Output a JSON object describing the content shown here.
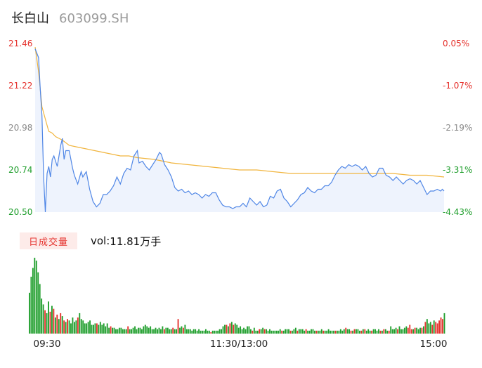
{
  "header": {
    "name": "长白山",
    "code": "603099.SH"
  },
  "volume_panel": {
    "badge": "日成交量",
    "vol_prefix": "vol: ",
    "vol_value": "11.81万手"
  },
  "colors": {
    "price": "#4f86e6",
    "avg": "#f1b53e",
    "up": "#e5322d",
    "down": "#1f9e2c",
    "neutral": "#888888",
    "fill": "#eef3fd"
  },
  "chart_data": [
    {
      "type": "line",
      "x_ticks": [
        "09:30",
        "11:30/13:00",
        "15:00"
      ],
      "y_ticks": [
        "21.46",
        "21.22",
        "20.98",
        "20.74",
        "20.50"
      ],
      "y_ticks_right": [
        "0.05%",
        "-1.07%",
        "-2.19%",
        "-3.31%",
        "-4.43%"
      ],
      "ylim": [
        20.5,
        21.46
      ],
      "n_points": 241,
      "series": [
        {
          "role": "price",
          "points": [
            [
              0,
              21.43
            ],
            [
              2,
              21.38
            ],
            [
              3,
              21.2
            ],
            [
              4,
              21.05
            ],
            [
              5,
              20.7
            ],
            [
              6,
              20.5
            ],
            [
              7,
              20.72
            ],
            [
              8,
              20.76
            ],
            [
              9,
              20.7
            ],
            [
              10,
              20.8
            ],
            [
              11,
              20.82
            ],
            [
              13,
              20.76
            ],
            [
              15,
              20.88
            ],
            [
              16,
              20.92
            ],
            [
              17,
              20.8
            ],
            [
              18,
              20.85
            ],
            [
              20,
              20.85
            ],
            [
              22,
              20.75
            ],
            [
              23,
              20.71
            ],
            [
              25,
              20.66
            ],
            [
              27,
              20.73
            ],
            [
              28,
              20.7
            ],
            [
              30,
              20.73
            ],
            [
              32,
              20.63
            ],
            [
              34,
              20.56
            ],
            [
              36,
              20.53
            ],
            [
              38,
              20.55
            ],
            [
              40,
              20.6
            ],
            [
              42,
              20.6
            ],
            [
              44,
              20.62
            ],
            [
              46,
              20.65
            ],
            [
              48,
              20.7
            ],
            [
              50,
              20.66
            ],
            [
              52,
              20.72
            ],
            [
              54,
              20.75
            ],
            [
              56,
              20.74
            ],
            [
              58,
              20.82
            ],
            [
              60,
              20.85
            ],
            [
              61,
              20.78
            ],
            [
              63,
              20.79
            ],
            [
              65,
              20.76
            ],
            [
              67,
              20.74
            ],
            [
              69,
              20.77
            ],
            [
              71,
              20.8
            ],
            [
              73,
              20.84
            ],
            [
              74,
              20.83
            ],
            [
              76,
              20.77
            ],
            [
              78,
              20.74
            ],
            [
              80,
              20.7
            ],
            [
              82,
              20.64
            ],
            [
              84,
              20.62
            ],
            [
              86,
              20.63
            ],
            [
              88,
              20.61
            ],
            [
              90,
              20.62
            ],
            [
              92,
              20.6
            ],
            [
              94,
              20.61
            ],
            [
              96,
              20.6
            ],
            [
              98,
              20.58
            ],
            [
              100,
              20.6
            ],
            [
              102,
              20.59
            ],
            [
              104,
              20.61
            ],
            [
              106,
              20.61
            ],
            [
              108,
              20.57
            ],
            [
              110,
              20.54
            ],
            [
              112,
              20.53
            ],
            [
              114,
              20.53
            ],
            [
              116,
              20.52
            ],
            [
              118,
              20.53
            ],
            [
              120,
              20.53
            ],
            [
              122,
              20.55
            ],
            [
              124,
              20.53
            ],
            [
              126,
              20.58
            ],
            [
              128,
              20.56
            ],
            [
              130,
              20.54
            ],
            [
              132,
              20.56
            ],
            [
              134,
              20.53
            ],
            [
              136,
              20.54
            ],
            [
              138,
              20.59
            ],
            [
              140,
              20.58
            ],
            [
              142,
              20.62
            ],
            [
              144,
              20.63
            ],
            [
              146,
              20.58
            ],
            [
              148,
              20.56
            ],
            [
              150,
              20.53
            ],
            [
              152,
              20.55
            ],
            [
              154,
              20.57
            ],
            [
              156,
              20.6
            ],
            [
              158,
              20.61
            ],
            [
              160,
              20.64
            ],
            [
              162,
              20.62
            ],
            [
              164,
              20.61
            ],
            [
              166,
              20.63
            ],
            [
              168,
              20.63
            ],
            [
              170,
              20.65
            ],
            [
              172,
              20.65
            ],
            [
              174,
              20.67
            ],
            [
              176,
              20.71
            ],
            [
              178,
              20.74
            ],
            [
              180,
              20.76
            ],
            [
              182,
              20.75
            ],
            [
              184,
              20.77
            ],
            [
              186,
              20.76
            ],
            [
              188,
              20.77
            ],
            [
              190,
              20.76
            ],
            [
              192,
              20.74
            ],
            [
              194,
              20.76
            ],
            [
              196,
              20.72
            ],
            [
              198,
              20.7
            ],
            [
              200,
              20.71
            ],
            [
              202,
              20.75
            ],
            [
              204,
              20.75
            ],
            [
              206,
              20.71
            ],
            [
              208,
              20.7
            ],
            [
              210,
              20.68
            ],
            [
              212,
              20.7
            ],
            [
              214,
              20.68
            ],
            [
              216,
              20.66
            ],
            [
              218,
              20.68
            ],
            [
              220,
              20.69
            ],
            [
              222,
              20.68
            ],
            [
              224,
              20.66
            ],
            [
              226,
              20.68
            ],
            [
              228,
              20.64
            ],
            [
              230,
              20.6
            ],
            [
              232,
              20.62
            ],
            [
              234,
              20.62
            ],
            [
              236,
              20.63
            ],
            [
              238,
              20.62
            ],
            [
              239,
              20.63
            ],
            [
              240,
              20.62
            ]
          ]
        },
        {
          "role": "average",
          "points": [
            [
              0,
              21.44
            ],
            [
              2,
              21.3
            ],
            [
              3,
              21.2
            ],
            [
              4,
              21.1
            ],
            [
              6,
              21.03
            ],
            [
              8,
              20.96
            ],
            [
              10,
              20.95
            ],
            [
              12,
              20.93
            ],
            [
              16,
              20.91
            ],
            [
              20,
              20.88
            ],
            [
              25,
              20.87
            ],
            [
              30,
              20.86
            ],
            [
              35,
              20.85
            ],
            [
              40,
              20.84
            ],
            [
              45,
              20.83
            ],
            [
              50,
              20.82
            ],
            [
              55,
              20.82
            ],
            [
              60,
              20.81
            ],
            [
              70,
              20.8
            ],
            [
              80,
              20.78
            ],
            [
              90,
              20.77
            ],
            [
              100,
              20.76
            ],
            [
              110,
              20.75
            ],
            [
              120,
              20.74
            ],
            [
              130,
              20.74
            ],
            [
              140,
              20.73
            ],
            [
              150,
              20.72
            ],
            [
              160,
              20.72
            ],
            [
              170,
              20.72
            ],
            [
              180,
              20.72
            ],
            [
              190,
              20.72
            ],
            [
              200,
              20.72
            ],
            [
              210,
              20.72
            ],
            [
              220,
              20.71
            ],
            [
              230,
              20.71
            ],
            [
              240,
              20.7
            ]
          ]
        }
      ]
    },
    {
      "type": "bar",
      "title": "日成交量",
      "vol_total": "11.81万手",
      "values": [
        28,
        39,
        45,
        52,
        50,
        42,
        34,
        24,
        20,
        16,
        14,
        22,
        15,
        19,
        17,
        11,
        13,
        10,
        14,
        12,
        9,
        8,
        10,
        9,
        7,
        11,
        8,
        9,
        11,
        14,
        10,
        9,
        7,
        7,
        8,
        9,
        6,
        6,
        7,
        7,
        6,
        8,
        6,
        7,
        5,
        7,
        4,
        5,
        4,
        4,
        3,
        3,
        4,
        4,
        3,
        3,
        3,
        5,
        3,
        3,
        4,
        5,
        3,
        4,
        4,
        3,
        5,
        6,
        5,
        4,
        5,
        3,
        3,
        4,
        3,
        4,
        3,
        5,
        3,
        4,
        4,
        3,
        3,
        4,
        3,
        3,
        10,
        4,
        5,
        4,
        6,
        3,
        3,
        3,
        2,
        3,
        3,
        2,
        3,
        2,
        2,
        2,
        3,
        2,
        2,
        1,
        2,
        2,
        2,
        2,
        3,
        3,
        5,
        6,
        6,
        5,
        7,
        8,
        6,
        7,
        6,
        4,
        5,
        3,
        4,
        3,
        5,
        5,
        3,
        2,
        4,
        2,
        2,
        3,
        3,
        4,
        3,
        3,
        2,
        3,
        2,
        2,
        2,
        2,
        2,
        3,
        2,
        2,
        3,
        3,
        3,
        2,
        2,
        3,
        4,
        2,
        3,
        3,
        3,
        2,
        3,
        2,
        2,
        3,
        3,
        2,
        2,
        2,
        2,
        3,
        2,
        2,
        2,
        3,
        2,
        2,
        2,
        2,
        2,
        2,
        3,
        2,
        3,
        4,
        3,
        3,
        2,
        2,
        3,
        3,
        3,
        2,
        2,
        3,
        3,
        2,
        3,
        2,
        2,
        3,
        3,
        2,
        3,
        2,
        2,
        3,
        3,
        2,
        2,
        5,
        3,
        3,
        4,
        3,
        5,
        3,
        3,
        4,
        5,
        4,
        6,
        3,
        3,
        4,
        4,
        3,
        4,
        4,
        5,
        8,
        10,
        7,
        8,
        6,
        9,
        8,
        7,
        9,
        11,
        10,
        14
      ],
      "up_indices": [
        9,
        12,
        14,
        16,
        18,
        20,
        22,
        28,
        39,
        47,
        57,
        78,
        83,
        86,
        89,
        105,
        114,
        116,
        118,
        129,
        133,
        136,
        146,
        151,
        155,
        160,
        166,
        170,
        177,
        183,
        186,
        188,
        192,
        194,
        198,
        203,
        205,
        208,
        213,
        219,
        220,
        221,
        223,
        227,
        229,
        233,
        235,
        236,
        237,
        238,
        239
      ]
    }
  ]
}
